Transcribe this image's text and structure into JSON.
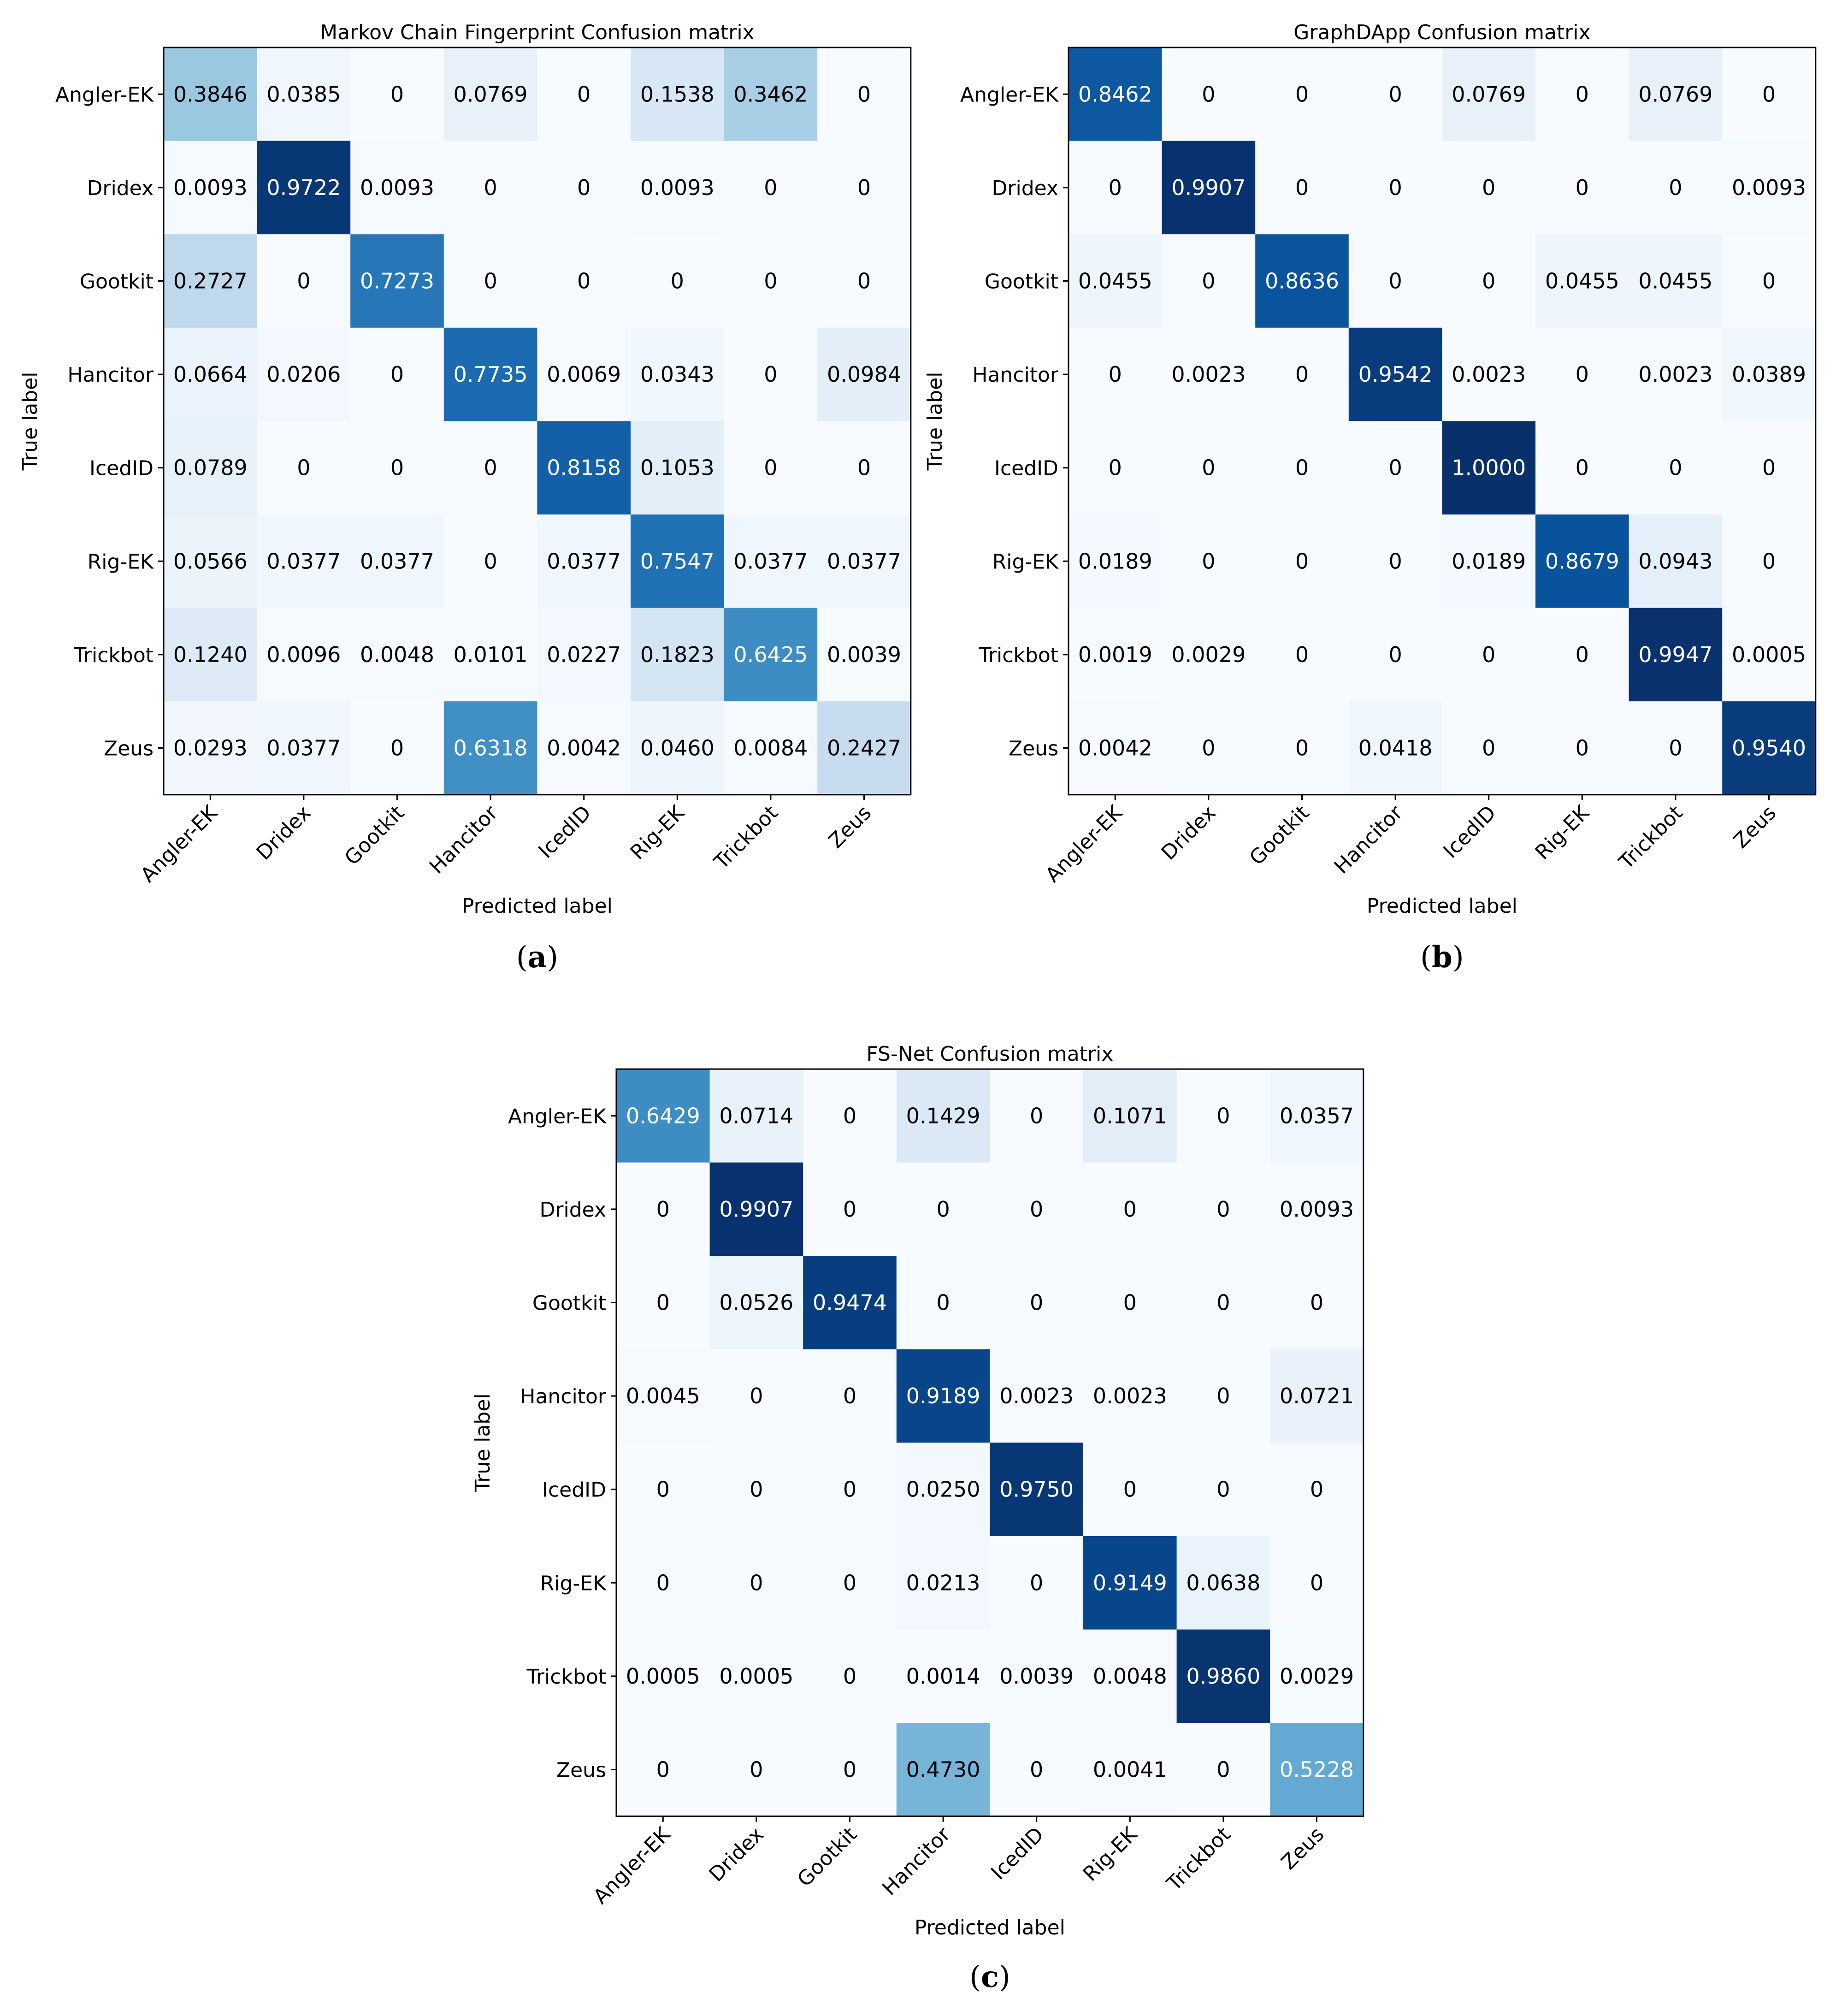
{
  "chart_data": [
    {
      "type": "heatmap",
      "title": "Markov Chain Fingerprint Confusion matrix",
      "xlabel": "Predicted label",
      "ylabel": "True label",
      "caption_letter": "a",
      "labels": [
        "Angler-EK",
        "Dridex",
        "Gootkit",
        "Hancitor",
        "IcedID",
        "Rig-EK",
        "Trickbot",
        "Zeus"
      ],
      "value_range": [
        0,
        1
      ],
      "colormap": "Blues",
      "cells": [
        [
          "0.3846",
          "0.0385",
          "0",
          "0.0769",
          "0",
          "0.1538",
          "0.3462",
          "0"
        ],
        [
          "0.0093",
          "0.9722",
          "0.0093",
          "0",
          "0",
          "0.0093",
          "0",
          "0"
        ],
        [
          "0.2727",
          "0",
          "0.7273",
          "0",
          "0",
          "0",
          "0",
          "0"
        ],
        [
          "0.0664",
          "0.0206",
          "0",
          "0.7735",
          "0.0069",
          "0.0343",
          "0",
          "0.0984"
        ],
        [
          "0.0789",
          "0",
          "0",
          "0",
          "0.8158",
          "0.1053",
          "0",
          "0"
        ],
        [
          "0.0566",
          "0.0377",
          "0.0377",
          "0",
          "0.0377",
          "0.7547",
          "0.0377",
          "0.0377"
        ],
        [
          "0.1240",
          "0.0096",
          "0.0048",
          "0.0101",
          "0.0227",
          "0.1823",
          "0.6425",
          "0.0039"
        ],
        [
          "0.0293",
          "0.0377",
          "0",
          "0.6318",
          "0.0042",
          "0.0460",
          "0.0084",
          "0.2427"
        ]
      ]
    },
    {
      "type": "heatmap",
      "title": "GraphDApp Confusion matrix",
      "xlabel": "Predicted label",
      "ylabel": "True label",
      "caption_letter": "b",
      "labels": [
        "Angler-EK",
        "Dridex",
        "Gootkit",
        "Hancitor",
        "IcedID",
        "Rig-EK",
        "Trickbot",
        "Zeus"
      ],
      "value_range": [
        0,
        1
      ],
      "colormap": "Blues",
      "cells": [
        [
          "0.8462",
          "0",
          "0",
          "0",
          "0.0769",
          "0",
          "0.0769",
          "0"
        ],
        [
          "0",
          "0.9907",
          "0",
          "0",
          "0",
          "0",
          "0",
          "0.0093"
        ],
        [
          "0.0455",
          "0",
          "0.8636",
          "0",
          "0",
          "0.0455",
          "0.0455",
          "0"
        ],
        [
          "0",
          "0.0023",
          "0",
          "0.9542",
          "0.0023",
          "0",
          "0.0023",
          "0.0389"
        ],
        [
          "0",
          "0",
          "0",
          "0",
          "1.0000",
          "0",
          "0",
          "0"
        ],
        [
          "0.0189",
          "0",
          "0",
          "0",
          "0.0189",
          "0.8679",
          "0.0943",
          "0"
        ],
        [
          "0.0019",
          "0.0029",
          "0",
          "0",
          "0",
          "0",
          "0.9947",
          "0.0005"
        ],
        [
          "0.0042",
          "0",
          "0",
          "0.0418",
          "0",
          "0",
          "0",
          "0.9540"
        ]
      ]
    },
    {
      "type": "heatmap",
      "title": "FS-Net Confusion matrix",
      "xlabel": "Predicted label",
      "ylabel": "True label",
      "caption_letter": "c",
      "labels": [
        "Angler-EK",
        "Dridex",
        "Gootkit",
        "Hancitor",
        "IcedID",
        "Rig-EK",
        "Trickbot",
        "Zeus"
      ],
      "value_range": [
        0,
        1
      ],
      "colormap": "Blues",
      "cells": [
        [
          "0.6429",
          "0.0714",
          "0",
          "0.1429",
          "0",
          "0.1071",
          "0",
          "0.0357"
        ],
        [
          "0",
          "0.9907",
          "0",
          "0",
          "0",
          "0",
          "0",
          "0.0093"
        ],
        [
          "0",
          "0.0526",
          "0.9474",
          "0",
          "0",
          "0",
          "0",
          "0"
        ],
        [
          "0.0045",
          "0",
          "0",
          "0.9189",
          "0.0023",
          "0.0023",
          "0",
          "0.0721"
        ],
        [
          "0",
          "0",
          "0",
          "0.0250",
          "0.9750",
          "0",
          "0",
          "0"
        ],
        [
          "0",
          "0",
          "0",
          "0.0213",
          "0",
          "0.9149",
          "0.0638",
          "0"
        ],
        [
          "0.0005",
          "0.0005",
          "0",
          "0.0014",
          "0.0039",
          "0.0048",
          "0.9860",
          "0.0029"
        ],
        [
          "0",
          "0",
          "0",
          "0.4730",
          "0",
          "0.0041",
          "0",
          "0.5228"
        ]
      ]
    }
  ]
}
